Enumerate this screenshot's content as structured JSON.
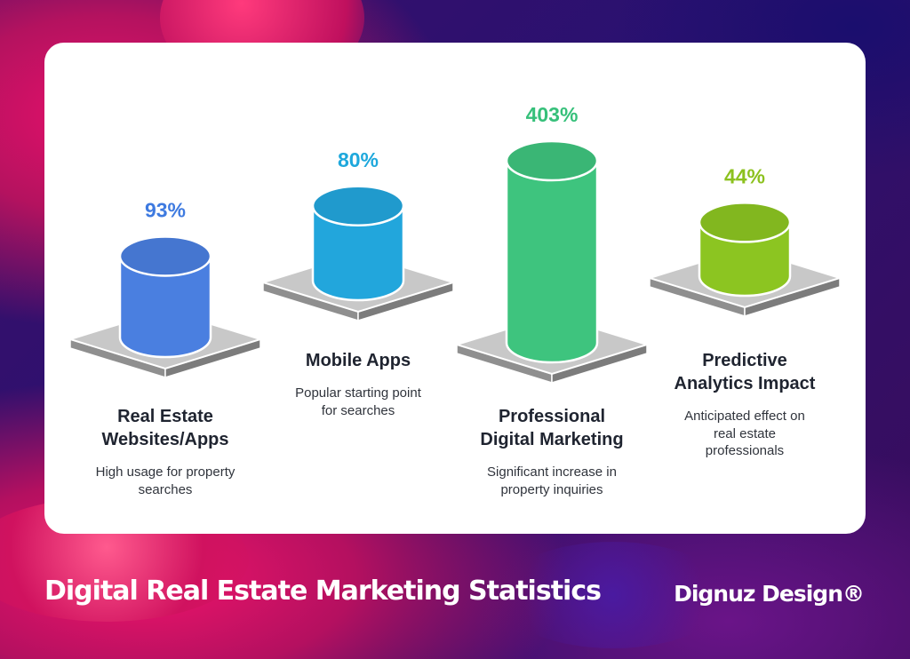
{
  "footer": {
    "title": "Digital Real Estate Marketing Statistics",
    "brand": "Dignuz Design®"
  },
  "chart_data": {
    "type": "bar",
    "title": "Digital Real Estate Marketing Statistics",
    "categories": [
      "Real Estate Websites/Apps",
      "Mobile Apps",
      "Professional Digital Marketing",
      "Predictive Analytics Impact"
    ],
    "values": [
      93,
      80,
      403,
      44
    ],
    "value_labels": [
      "93%",
      "80%",
      "403%",
      "44%"
    ],
    "descriptions": [
      "High usage for property searches",
      "Popular starting point for searches",
      "Significant increase in property inquiries",
      "Anticipated effect on real estate professionals"
    ],
    "label_lines": [
      [
        "Real Estate",
        "Websites/Apps"
      ],
      [
        "Mobile Apps"
      ],
      [
        "Professional",
        "Digital Marketing"
      ],
      [
        "Predictive",
        "Analytics Impact"
      ]
    ],
    "description_lines": [
      [
        "High usage for property",
        "searches"
      ],
      [
        "Popular starting point",
        "for searches"
      ],
      [
        "Significant increase in",
        "property inquiries"
      ],
      [
        "Anticipated effect on",
        "real estate",
        "professionals"
      ]
    ],
    "colors": [
      "#4a7fe0",
      "#22a6dc",
      "#3ec47e",
      "#8cc521"
    ],
    "value_colors": [
      "#3e7ae0",
      "#1ea8dc",
      "#36c07a",
      "#8cc11e"
    ],
    "unit": "%",
    "grid": false,
    "legend": "none"
  }
}
